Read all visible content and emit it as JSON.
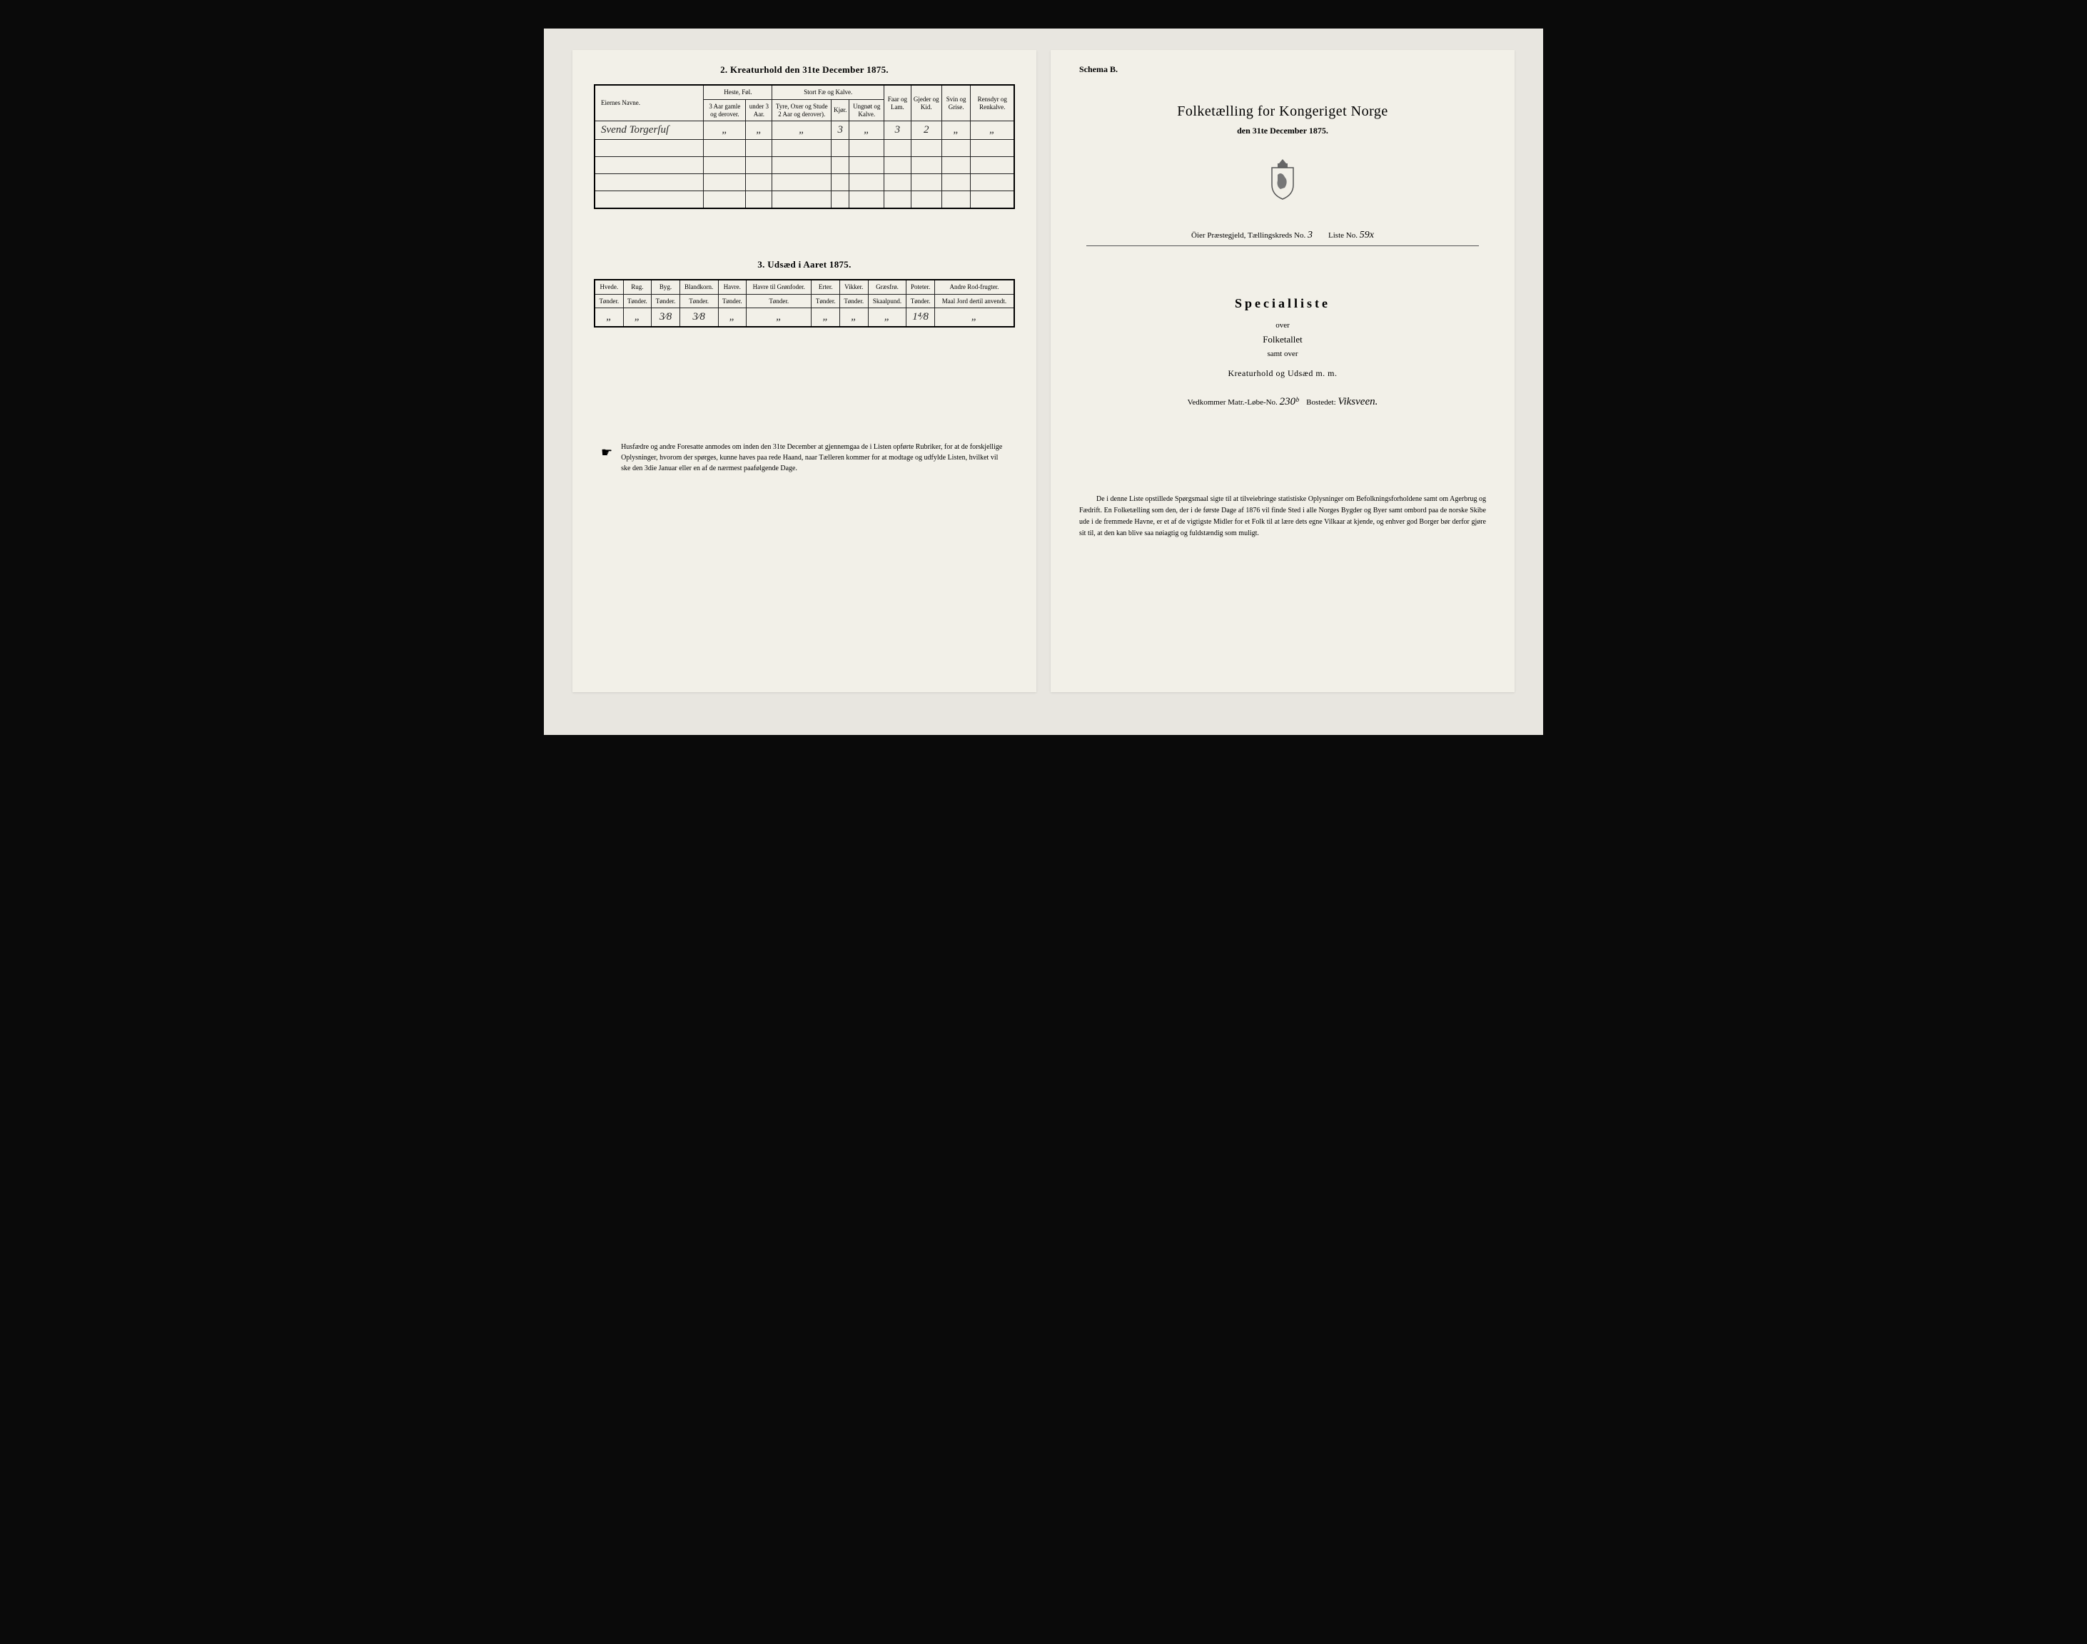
{
  "left": {
    "table2": {
      "title": "2.  Kreaturhold den 31te December 1875.",
      "col_owner": "Eiernes Navne.",
      "group_heste": "Heste, Føl.",
      "group_stort": "Stort Fæ og Kalve.",
      "col_faar": "Faar og Lam.",
      "col_gjeder": "Gjeder og Kid.",
      "col_svin": "Svin og Grise.",
      "col_rensdyr": "Rensdyr og Renkalve.",
      "sub_h1": "3 Aar gamle og derover.",
      "sub_h2": "under 3 Aar.",
      "sub_s1": "Tyre, Oxer og Stude 2 Aar og derover).",
      "sub_s2": "Kjør.",
      "sub_s3": "Ungnøt og Kalve.",
      "row": {
        "name": "Svend Torgerſuſ",
        "v1": "„",
        "v2": "„",
        "v3": "„",
        "v4": "3",
        "v5": "„",
        "v6": "3",
        "v7": "2",
        "v8": "„",
        "v9": "„"
      }
    },
    "table3": {
      "title": "3.  Udsæd i Aaret 1875.",
      "cols": [
        {
          "h": "Hvede.",
          "s": "Tønder."
        },
        {
          "h": "Rug.",
          "s": "Tønder."
        },
        {
          "h": "Byg.",
          "s": "Tønder."
        },
        {
          "h": "Blandkorn.",
          "s": "Tønder."
        },
        {
          "h": "Havre.",
          "s": "Tønder."
        },
        {
          "h": "Havre til Grønfoder.",
          "s": "Tønder."
        },
        {
          "h": "Erter.",
          "s": "Tønder."
        },
        {
          "h": "Vikker.",
          "s": "Tønder."
        },
        {
          "h": "Græsfrø.",
          "s": "Skaalpund."
        },
        {
          "h": "Poteter.",
          "s": "Tønder."
        },
        {
          "h": "Andre Rod-frugter.",
          "s": "Maal Jord dertil anvendt."
        }
      ],
      "row": [
        "„",
        "„",
        "3⁄8",
        "3⁄8",
        "„",
        "„",
        "„",
        "„",
        "„",
        "1⁴⁄8",
        "„"
      ]
    },
    "footnote": "Husfædre og andre Foresatte anmodes om inden den 31te December at gjennemgaa de i Listen opførte Rubriker, for at de forskjellige Oplysninger, hvorom der spørges, kunne haves paa rede Haand, naar Tælleren kommer for at modtage og udfylde Listen, hvilket vil ske den 3die Januar eller en af de nærmest paafølgende Dage."
  },
  "right": {
    "schema": "Schema B.",
    "title": "Folketælling for Kongeriget Norge",
    "date": "den 31te December 1875.",
    "parish_prefix": "Öier Præstegjeld, Tællingskreds No.",
    "parish_no": "3",
    "liste_label": "Liste No.",
    "liste_no": "59x",
    "spec": "Specialliste",
    "over": "over",
    "folketallet": "Folketallet",
    "samt": "samt over",
    "kreatur": "Kreaturhold og Udsæd m. m.",
    "matr_prefix": "Vedkommer Matr.-Løbe-No.",
    "matr_no": "230ᵇ",
    "bosted_label": "Bostedet:",
    "bosted": "Viksveen.",
    "bottom": "De i denne Liste opstillede Spørgsmaal sigte til at tilveiebringe statistiske Oplysninger om Befolkningsforholdene samt om Agerbrug og Fædrift.  En Folketælling som den, der i de første Dage af 1876 vil finde Sted i alle Norges Bygder og Byer samt ombord paa de norske Skibe ude i de fremmede Havne, er et af de vigtigste Midler for et Folk til at lære dets egne Vilkaar at kjende, og enhver god Borger bør derfor gjøre sit til, at den kan blive saa nøiagtig og fuldstændig som muligt."
  }
}
